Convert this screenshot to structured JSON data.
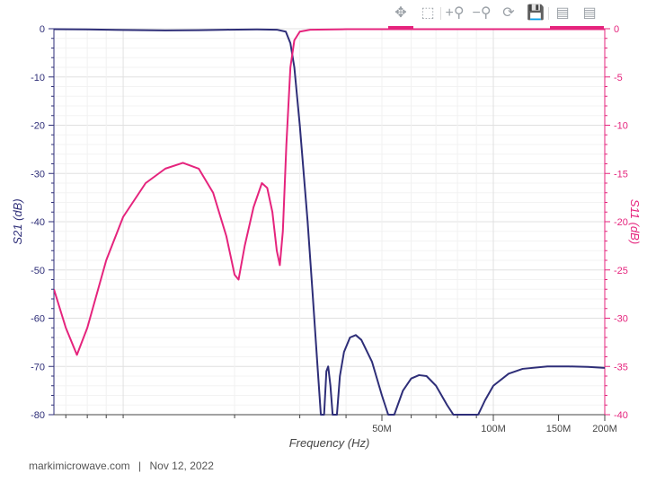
{
  "toolbar": {
    "buttons": [
      {
        "name": "pan-icon",
        "glyph": "✥"
      },
      {
        "name": "box-zoom-icon",
        "glyph": "⬚"
      },
      {
        "name": "zoom-in-icon",
        "glyph": "+⚲"
      },
      {
        "name": "zoom-out-icon",
        "glyph": "−⚲"
      },
      {
        "name": "reset-icon",
        "glyph": "⟳"
      },
      {
        "name": "save-icon",
        "glyph": "💾"
      },
      {
        "name": "hover-s21-icon",
        "glyph": "▤"
      },
      {
        "name": "hover-s11-icon",
        "glyph": "▤"
      }
    ]
  },
  "footer": {
    "source": "markimicrowave.com",
    "separator": "|",
    "date": "Nov 12, 2022"
  },
  "colors": {
    "s21": "#2e2e78",
    "s11": "#e5247d",
    "grid": "#ececec"
  },
  "chart_data": {
    "type": "line",
    "xlabel": "Frequency (Hz)",
    "ylabel_left": "S21 (dB)",
    "ylabel_right": "S11 (dB)",
    "x_scale": "log",
    "xlim": [
      6500000,
      200000000
    ],
    "ylim_left": [
      -80,
      0
    ],
    "ylim_right": [
      -40,
      0
    ],
    "x_ticks": [
      {
        "value": 50000000,
        "label": "50M"
      },
      {
        "value": 100000000,
        "label": "100M"
      },
      {
        "value": 150000000,
        "label": "150M"
      },
      {
        "value": 200000000,
        "label": "200M"
      }
    ],
    "y_ticks_left": [
      0,
      -10,
      -20,
      -30,
      -40,
      -50,
      -60,
      -70,
      -80
    ],
    "y_ticks_right": [
      0,
      -5,
      -10,
      -15,
      -20,
      -25,
      -30,
      -35,
      -40
    ],
    "grid": true,
    "series": [
      {
        "name": "S21 (dB)",
        "axis": "left",
        "points": [
          [
            6500000.0,
            -0.1
          ],
          [
            8000000.0,
            -0.15
          ],
          [
            10000000.0,
            -0.25
          ],
          [
            13000000.0,
            -0.35
          ],
          [
            16000000.0,
            -0.3
          ],
          [
            19000000.0,
            -0.2
          ],
          [
            23000000.0,
            -0.15
          ],
          [
            26000000.0,
            -0.2
          ],
          [
            27500000.0,
            -0.6
          ],
          [
            28300000.0,
            -3
          ],
          [
            29000000.0,
            -8
          ],
          [
            30000000.0,
            -20
          ],
          [
            31500000.0,
            -40
          ],
          [
            32500000.0,
            -55
          ],
          [
            33500000.0,
            -70
          ],
          [
            34200000.0,
            -80
          ],
          [
            34900000.0,
            -80
          ],
          [
            35400000.0,
            -71
          ],
          [
            35800000.0,
            -70
          ],
          [
            36300000.0,
            -74
          ],
          [
            36800000.0,
            -80
          ],
          [
            37800000.0,
            -80
          ],
          [
            38500000.0,
            -72
          ],
          [
            39500000.0,
            -67
          ],
          [
            41000000.0,
            -64
          ],
          [
            42500000.0,
            -63.5
          ],
          [
            44000000.0,
            -64.5
          ],
          [
            47000000.0,
            -69
          ],
          [
            50000000.0,
            -76
          ],
          [
            52000000.0,
            -80
          ],
          [
            54000000.0,
            -80
          ],
          [
            57000000.0,
            -75
          ],
          [
            60000000.0,
            -72.5
          ],
          [
            63000000.0,
            -71.8
          ],
          [
            66000000.0,
            -72
          ],
          [
            70000000.0,
            -74
          ],
          [
            75000000.0,
            -78
          ],
          [
            78000000.0,
            -80
          ],
          [
            91000000.0,
            -80
          ],
          [
            95000000.0,
            -77
          ],
          [
            100000000.0,
            -74
          ],
          [
            110000000.0,
            -71.5
          ],
          [
            120000000.0,
            -70.5
          ],
          [
            140000000.0,
            -70
          ],
          [
            160000000.0,
            -70
          ],
          [
            180000000.0,
            -70.1
          ],
          [
            200000000.0,
            -70.3
          ]
        ]
      },
      {
        "name": "S11 (dB)",
        "axis": "right",
        "points": [
          [
            6500000.0,
            -27
          ],
          [
            7000000.0,
            -31
          ],
          [
            7500000.0,
            -33.8
          ],
          [
            8000000.0,
            -31
          ],
          [
            9000000.0,
            -24
          ],
          [
            10000000.0,
            -19.5
          ],
          [
            11500000.0,
            -16
          ],
          [
            13000000.0,
            -14.5
          ],
          [
            14500000.0,
            -13.9
          ],
          [
            16000000.0,
            -14.5
          ],
          [
            17500000.0,
            -17
          ],
          [
            19000000.0,
            -21.5
          ],
          [
            20000000.0,
            -25.5
          ],
          [
            20500000.0,
            -26
          ],
          [
            21300000.0,
            -22.5
          ],
          [
            22500000.0,
            -18.5
          ],
          [
            23700000.0,
            -16
          ],
          [
            24500000.0,
            -16.5
          ],
          [
            25300000.0,
            -19
          ],
          [
            26000000.0,
            -23
          ],
          [
            26500000.0,
            -24.5
          ],
          [
            27000000.0,
            -21
          ],
          [
            27600000.0,
            -12
          ],
          [
            28300000.0,
            -4
          ],
          [
            29000000.0,
            -1.2
          ],
          [
            30000000.0,
            -0.3
          ],
          [
            32000000.0,
            -0.1
          ],
          [
            40000000.0,
            -0.05
          ],
          [
            80000000.0,
            -0.05
          ],
          [
            200000000.0,
            -0.05
          ]
        ]
      }
    ]
  }
}
